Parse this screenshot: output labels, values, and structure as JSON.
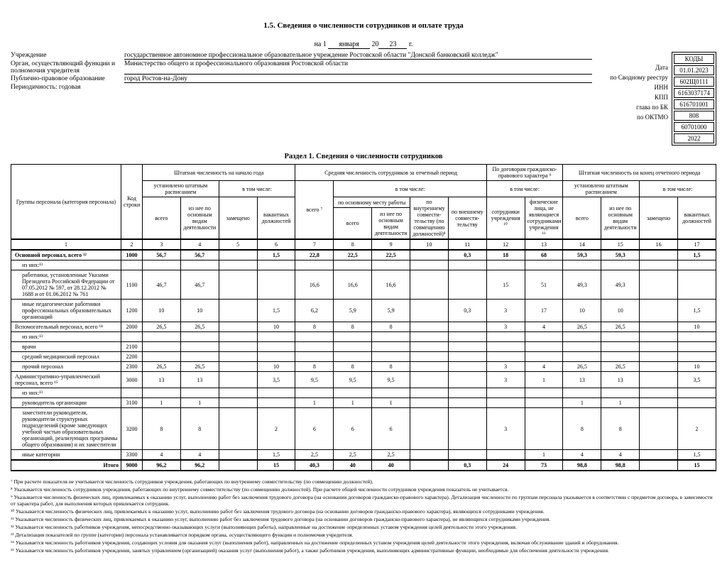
{
  "title": "1.5. Сведения о численности сотрудников и оплате труда",
  "date_prefix": "на 1",
  "date_month": "января",
  "date_year_pre": "20",
  "date_year": "23",
  "date_suffix": "г.",
  "header_rows": [
    {
      "label": "Учреждение",
      "value": "государственное автономное профессиональное образовательное учреждение Ростовской области \"Донской банковский колледж\""
    },
    {
      "label": "Орган, осуществляющий функции и полномочия учредителя",
      "value": "Министерство общего и профессионального образования Ростовской области"
    },
    {
      "label": "Публично-правовое образование",
      "value": "город Ростов-на-Дону"
    },
    {
      "label": "Периодичность: годовая",
      "value": ""
    }
  ],
  "codes": {
    "header": "КОДЫ",
    "items": [
      {
        "label": "Дата",
        "value": "01.01.2023"
      },
      {
        "label": "по Сводному реестру",
        "value": "602Щ0111"
      },
      {
        "label": "ИНН",
        "value": "6163037174"
      },
      {
        "label": "КПП",
        "value": "616701001"
      },
      {
        "label": "глава по БК",
        "value": "808"
      },
      {
        "label": "по ОКТМО",
        "value": "60701000"
      },
      {
        "label": "",
        "value": "2022"
      }
    ]
  },
  "section1_title": "Раздел 1. Сведения о численности сотрудников",
  "head": {
    "c1": "Группы персонала (категория персонала)",
    "c2": "Код строки",
    "g1": "Штатная численность на начало года",
    "g1a": "установлено штатным расписанием",
    "g1b": "в том числе:",
    "c3": "всего",
    "c4": "из нее по основным видам деятельности",
    "c5": "замещено",
    "c6": "вакантных должностей",
    "g2": "Средняя численность сотрудников за отчетный период",
    "c7": "всего ⁷",
    "g2a": "в том числе:",
    "g2a1": "по основному месту работы",
    "c8": "всего",
    "c9": "из нее по основным видам деятельности",
    "c10": "по внутреннему совмести-тельству (по совмещению должностей)⁸",
    "c11": "по внешнему совмести-тельству",
    "g3": "По договорам гражданско-правового характера ⁹",
    "g3a": "в том числе:",
    "c12": "сотрудники учреждения ¹⁰",
    "c13": "физические лица, не являющиеся сотрудниками учреждения ¹¹",
    "g4": "Штатная численность на конец отчетного периода",
    "g4a": "установлено штатным расписанием",
    "g4b": "в том числе:",
    "c14": "всего",
    "c15": "из нее по основным видам деятельности",
    "c16": "замещено",
    "c17": "вакантных должностей"
  },
  "colnums": [
    "1",
    "2",
    "3",
    "4",
    "5",
    "6",
    "7",
    "8",
    "9",
    "10",
    "11",
    "12",
    "13",
    "14",
    "15",
    "16",
    "17"
  ],
  "rows": [
    {
      "label": "Основной персонал, всего ¹²",
      "code": "1000",
      "v": [
        "56,7",
        "56,7",
        "",
        "1,5",
        "22,8",
        "22,5",
        "22,5",
        "",
        "0,3",
        "18",
        "68",
        "59,3",
        "59,3",
        "",
        "1,5"
      ],
      "bold": true
    },
    {
      "label": "из них:¹³",
      "code": "",
      "v": [
        "",
        "",
        "",
        "",
        "",
        "",
        "",
        "",
        "",
        "",
        "",
        "",
        "",
        "",
        ""
      ],
      "indent": true
    },
    {
      "label": "работники, установленные Указами Президента Российской Федерации от 07.05.2012 № 597, от 28.12.2012 № 1688 и от 01.06.2012 № 761",
      "code": "1100",
      "v": [
        "46,7",
        "46,7",
        "",
        "",
        "16,6",
        "16,6",
        "16,6",
        "",
        "",
        "15",
        "51",
        "49,3",
        "49,3",
        "",
        ""
      ],
      "indent": true
    },
    {
      "label": "иные педагогические работники профессиональных образовательных организаций",
      "code": "1200",
      "v": [
        "10",
        "10",
        "",
        "1,5",
        "6,2",
        "5,9",
        "5,9",
        "",
        "0,3",
        "3",
        "17",
        "10",
        "10",
        "",
        "1,5"
      ],
      "indent": true
    },
    {
      "label": "Вспомогательный персонал, всего ¹⁴",
      "code": "2000",
      "v": [
        "26,5",
        "26,5",
        "",
        "10",
        "8",
        "8",
        "8",
        "",
        "",
        "3",
        "4",
        "26,5",
        "26,5",
        "",
        "10"
      ],
      "bold": false
    },
    {
      "label": "из них:¹³",
      "code": "",
      "v": [
        "",
        "",
        "",
        "",
        "",
        "",
        "",
        "",
        "",
        "",
        "",
        "",
        "",
        "",
        ""
      ],
      "indent": true
    },
    {
      "label": "врачи",
      "code": "2100",
      "v": [
        "",
        "",
        "",
        "",
        "",
        "",
        "",
        "",
        "",
        "",
        "",
        "",
        "",
        "",
        ""
      ],
      "indent": true
    },
    {
      "label": "средний медицинский персонал",
      "code": "2200",
      "v": [
        "",
        "",
        "",
        "",
        "",
        "",
        "",
        "",
        "",
        "",
        "",
        "",
        "",
        "",
        ""
      ],
      "indent": true
    },
    {
      "label": "прочий персонал",
      "code": "2300",
      "v": [
        "26,5",
        "26,5",
        "",
        "10",
        "8",
        "8",
        "8",
        "",
        "",
        "3",
        "4",
        "26,5",
        "26,5",
        "",
        "10"
      ],
      "indent": true
    },
    {
      "label": "Административно-управленческий персонал, всего ¹⁵",
      "code": "3000",
      "v": [
        "13",
        "13",
        "",
        "3,5",
        "9,5",
        "9,5",
        "9,5",
        "",
        "",
        "3",
        "1",
        "13",
        "13",
        "",
        "3,5"
      ]
    },
    {
      "label": "из них:¹³",
      "code": "",
      "v": [
        "",
        "",
        "",
        "",
        "",
        "",
        "",
        "",
        "",
        "",
        "",
        "",
        "",
        "",
        ""
      ],
      "indent": true
    },
    {
      "label": "руководитель организации",
      "code": "3100",
      "v": [
        "1",
        "1",
        "",
        "",
        "1",
        "1",
        "1",
        "",
        "",
        "",
        "",
        "1",
        "1",
        "",
        ""
      ],
      "indent": true
    },
    {
      "label": "заместители руководителя, руководители структурных подразделений (кроме заведующих учебной частью образовательных организаций, реализующих программы общего образования) и их заместители",
      "code": "3200",
      "v": [
        "8",
        "8",
        "",
        "2",
        "6",
        "6",
        "6",
        "",
        "",
        "3",
        "",
        "8",
        "8",
        "",
        "2"
      ],
      "indent": true
    },
    {
      "label": "иные категории",
      "code": "3300",
      "v": [
        "4",
        "4",
        "",
        "1,5",
        "2,5",
        "2,5",
        "2,5",
        "",
        "",
        "",
        "1",
        "4",
        "4",
        "",
        "1,5"
      ],
      "indent": true
    },
    {
      "label": "Итого",
      "code": "9000",
      "v": [
        "96,2",
        "96,2",
        "",
        "15",
        "40,3",
        "40",
        "40",
        "",
        "0,3",
        "24",
        "73",
        "98,8",
        "98,8",
        "",
        "15"
      ],
      "bold": true,
      "right": true
    }
  ],
  "footnotes": [
    "⁷ При расчете показателя не учитывается численность сотрудников учреждения, работающих по внутреннему совместительству (по совмещению должностей).",
    "⁸ Указывается численность сотрудников учреждения, работающих по внутреннему совместительству (по совмещению должностей). При расчете общей численности сотрудников учреждения показатель не учитывается.",
    "⁹ Указывается численность физических лиц, привлекаемых к оказанию услуг, выполнению работ без заключения трудового договора (на основании договоров гражданско-правового характера). Детализация численности по группам персонала указывается в соответствии с предметом договора, в зависимости от характера работ, для выполнения которых привлекается сотрудник.",
    "¹⁰ Указывается численность физических лиц, привлекаемых к оказанию услуг, выполнению работ без заключения трудового договора (на основании договоров гражданско-правового характера), являющихся сотрудниками учреждения.",
    "¹¹ Указывается численность физических лиц, привлекаемых к оказанию услуг, выполнению работ без заключения трудового договора (на основании договоров гражданско-правового характера), не являющихся сотрудниками учреждения.",
    "¹² Указывается численность работников учреждения, непосредственно оказывающих услуги (выполняющих работы), направленные на достижение определенных уставом учреждения целей деятельности этого учреждения.",
    "¹³ Детализация показателей по группе (категории) персонала устанавливается порядком органа, осуществляющего функции и полномочия учредителя.",
    "¹⁴ Указывается численность работников учреждения, создающих условия для оказания услуг (выполнения работ), направленных на достижение определенных уставом учреждения целей деятельности этого учреждения, включая обслуживание зданий и оборудования.",
    "¹⁵ Указывается численность работников учреждения, занятых управлением (организацией) оказания услуг (выполнения работ), а также работников учреждения, выполняющих административные функции, необходимые для обеспечения деятельности учреждения."
  ]
}
